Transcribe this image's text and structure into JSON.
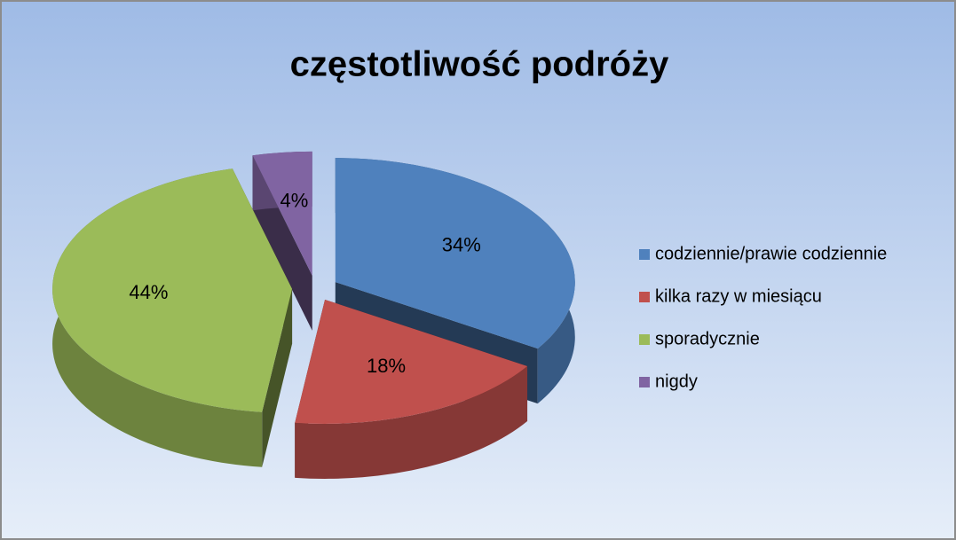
{
  "chart_data": {
    "type": "pie3d",
    "title": "częstotliwość podróży",
    "categories": [
      "codziennie/prawie codziennie",
      "kilka razy w miesiącu",
      "sporadycznie",
      "nigdy"
    ],
    "values": [
      34,
      18,
      44,
      4
    ],
    "value_labels": [
      "34%",
      "18%",
      "44%",
      "4%"
    ],
    "colors": [
      "#4f81bd",
      "#c0504d",
      "#9bbb59",
      "#8064a2"
    ],
    "legend": "right"
  }
}
